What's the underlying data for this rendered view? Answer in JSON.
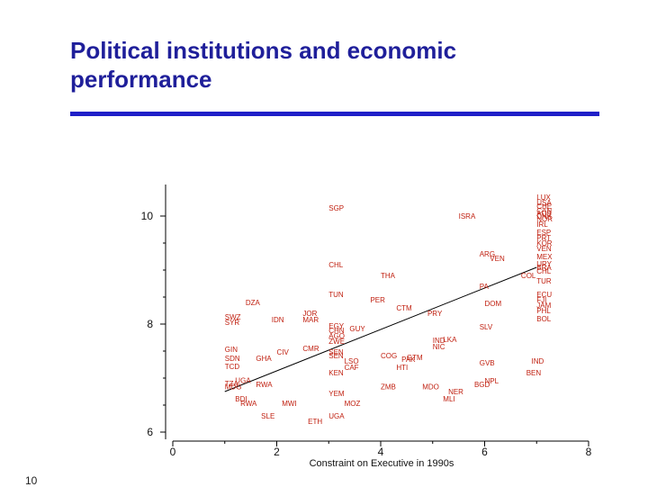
{
  "slide": {
    "title": "Political institutions and economic performance",
    "page_number": "10"
  },
  "colors": {
    "title": "#1f1f9a",
    "rule": "#1f1fc8",
    "points": "#c02010",
    "fit_line": "#000000"
  },
  "chart_data": {
    "type": "scatter",
    "title": "",
    "xlabel": "Constraint on Executive in 1990s",
    "ylabel": "",
    "xlim": [
      0,
      8
    ],
    "ylim": [
      6,
      10.5
    ],
    "xticks": [
      "0",
      "2",
      "4",
      "6",
      "8"
    ],
    "yticks": [
      "6",
      "8",
      "10"
    ],
    "grid": false,
    "fit_line": {
      "x": [
        1,
        7
      ],
      "y": [
        6.75,
        9.05
      ]
    },
    "points": [
      {
        "label": "SGP",
        "x": 3.0,
        "y": 10.15
      },
      {
        "label": "ISRA",
        "x": 5.5,
        "y": 10.0
      },
      {
        "label": "LUX",
        "x": 7.0,
        "y": 10.35
      },
      {
        "label": "USA",
        "x": 7.0,
        "y": 10.25
      },
      {
        "label": "CHE",
        "x": 7.0,
        "y": 10.18
      },
      {
        "label": "CAN",
        "x": 7.0,
        "y": 10.1
      },
      {
        "label": "AUS",
        "x": 7.0,
        "y": 10.05
      },
      {
        "label": "DNK",
        "x": 7.0,
        "y": 10.0
      },
      {
        "label": "NOR",
        "x": 7.0,
        "y": 9.95
      },
      {
        "label": "IRL",
        "x": 7.0,
        "y": 9.85
      },
      {
        "label": "ESP",
        "x": 7.0,
        "y": 9.7
      },
      {
        "label": "PRT",
        "x": 7.0,
        "y": 9.6
      },
      {
        "label": "KOR",
        "x": 7.0,
        "y": 9.5
      },
      {
        "label": "VEN",
        "x": 7.0,
        "y": 9.4
      },
      {
        "label": "ARG",
        "x": 5.9,
        "y": 9.3
      },
      {
        "label": "VEN",
        "x": 6.1,
        "y": 9.22
      },
      {
        "label": "MEX",
        "x": 7.0,
        "y": 9.25
      },
      {
        "label": "URY",
        "x": 7.0,
        "y": 9.12
      },
      {
        "label": "BRA",
        "x": 7.0,
        "y": 9.05
      },
      {
        "label": "CHL",
        "x": 7.0,
        "y": 8.98
      },
      {
        "label": "COL",
        "x": 6.7,
        "y": 8.9
      },
      {
        "label": "TUR",
        "x": 7.0,
        "y": 8.8
      },
      {
        "label": "ECU",
        "x": 7.0,
        "y": 8.55
      },
      {
        "label": "FJI",
        "x": 7.0,
        "y": 8.45
      },
      {
        "label": "JAM",
        "x": 7.0,
        "y": 8.35
      },
      {
        "label": "PHL",
        "x": 7.0,
        "y": 8.25
      },
      {
        "label": "BOL",
        "x": 7.0,
        "y": 8.1
      },
      {
        "label": "CHL",
        "x": 3.0,
        "y": 9.1
      },
      {
        "label": "THA",
        "x": 4.0,
        "y": 8.9
      },
      {
        "label": "PER",
        "x": 3.8,
        "y": 8.45
      },
      {
        "label": "TUN",
        "x": 3.0,
        "y": 8.55
      },
      {
        "label": "PA",
        "x": 5.9,
        "y": 8.7
      },
      {
        "label": "DOM",
        "x": 6.0,
        "y": 8.38
      },
      {
        "label": "CTM",
        "x": 4.3,
        "y": 8.3
      },
      {
        "label": "PRY",
        "x": 4.9,
        "y": 8.2
      },
      {
        "label": "DZA",
        "x": 1.4,
        "y": 8.4
      },
      {
        "label": "JOR",
        "x": 2.5,
        "y": 8.2
      },
      {
        "label": "MAR",
        "x": 2.5,
        "y": 8.08
      },
      {
        "label": "SWZ",
        "x": 1.0,
        "y": 8.13
      },
      {
        "label": "SYR",
        "x": 1.0,
        "y": 8.03
      },
      {
        "label": "IDN",
        "x": 1.9,
        "y": 8.08
      },
      {
        "label": "SLV",
        "x": 5.9,
        "y": 7.95
      },
      {
        "label": "EGY",
        "x": 3.0,
        "y": 7.97
      },
      {
        "label": "CHN",
        "x": 3.0,
        "y": 7.88
      },
      {
        "label": "GUY",
        "x": 3.4,
        "y": 7.92
      },
      {
        "label": "AGO",
        "x": 3.0,
        "y": 7.78
      },
      {
        "label": "ZWE",
        "x": 3.0,
        "y": 7.68
      },
      {
        "label": "IND",
        "x": 5.0,
        "y": 7.7
      },
      {
        "label": "LKA",
        "x": 5.2,
        "y": 7.72
      },
      {
        "label": "NIC",
        "x": 5.0,
        "y": 7.58
      },
      {
        "label": "GIN",
        "x": 1.0,
        "y": 7.53
      },
      {
        "label": "CMR",
        "x": 2.5,
        "y": 7.55
      },
      {
        "label": "CIV",
        "x": 2.0,
        "y": 7.48
      },
      {
        "label": "SEN",
        "x": 3.0,
        "y": 7.48
      },
      {
        "label": "SDN",
        "x": 1.0,
        "y": 7.37
      },
      {
        "label": "GHA",
        "x": 1.6,
        "y": 7.37
      },
      {
        "label": "SEN",
        "x": 3.0,
        "y": 7.42
      },
      {
        "label": "LSO",
        "x": 3.3,
        "y": 7.32
      },
      {
        "label": "COG",
        "x": 4.0,
        "y": 7.42
      },
      {
        "label": "PAK",
        "x": 4.4,
        "y": 7.35
      },
      {
        "label": "GTM",
        "x": 4.5,
        "y": 7.38
      },
      {
        "label": "GVB",
        "x": 5.9,
        "y": 7.28
      },
      {
        "label": "IND",
        "x": 6.9,
        "y": 7.32
      },
      {
        "label": "TCD",
        "x": 1.0,
        "y": 7.22
      },
      {
        "label": "CAF",
        "x": 3.3,
        "y": 7.2
      },
      {
        "label": "HTI",
        "x": 4.3,
        "y": 7.2
      },
      {
        "label": "KEN",
        "x": 3.0,
        "y": 7.1
      },
      {
        "label": "BEN",
        "x": 6.8,
        "y": 7.1
      },
      {
        "label": "UGA",
        "x": 1.2,
        "y": 6.96
      },
      {
        "label": "TZA",
        "x": 1.0,
        "y": 6.9
      },
      {
        "label": "MDG",
        "x": 1.0,
        "y": 6.84
      },
      {
        "label": "RWA",
        "x": 1.6,
        "y": 6.88
      },
      {
        "label": "ZMB",
        "x": 4.0,
        "y": 6.84
      },
      {
        "label": "MDO",
        "x": 4.8,
        "y": 6.84
      },
      {
        "label": "BGD",
        "x": 5.8,
        "y": 6.88
      },
      {
        "label": "NPL",
        "x": 6.0,
        "y": 6.95
      },
      {
        "label": "YEM",
        "x": 3.0,
        "y": 6.72
      },
      {
        "label": "BDI",
        "x": 1.2,
        "y": 6.62
      },
      {
        "label": "RWA",
        "x": 1.3,
        "y": 6.53
      },
      {
        "label": "MWI",
        "x": 2.1,
        "y": 6.53
      },
      {
        "label": "MOZ",
        "x": 3.3,
        "y": 6.53
      },
      {
        "label": "NER",
        "x": 5.3,
        "y": 6.75
      },
      {
        "label": "MLI",
        "x": 5.2,
        "y": 6.62
      },
      {
        "label": "SLE",
        "x": 1.7,
        "y": 6.3
      },
      {
        "label": "UGA",
        "x": 3.0,
        "y": 6.3
      },
      {
        "label": "ETH",
        "x": 2.6,
        "y": 6.2
      }
    ]
  }
}
